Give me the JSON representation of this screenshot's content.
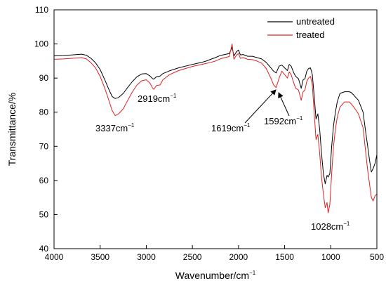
{
  "chart_data": {
    "type": "line",
    "xlabel": "Wavenumber/cm",
    "xlabel_sup": "−1",
    "ylabel": "Transmittance/%",
    "xlim": [
      4000,
      500
    ],
    "ylim": [
      40,
      110
    ],
    "x_ticks": [
      4000,
      3500,
      3000,
      2500,
      2000,
      1500,
      1000,
      500
    ],
    "y_ticks": [
      40,
      50,
      60,
      70,
      80,
      90,
      100,
      110
    ],
    "grid": false,
    "legend_position": "top-right",
    "series": [
      {
        "name": "untreated",
        "color": "#000000",
        "points": [
          [
            4000,
            96.5
          ],
          [
            3900,
            96.6
          ],
          [
            3800,
            96.8
          ],
          [
            3700,
            97.0
          ],
          [
            3650,
            96.7
          ],
          [
            3600,
            95.8
          ],
          [
            3550,
            94.5
          ],
          [
            3500,
            92.5
          ],
          [
            3450,
            89.5
          ],
          [
            3400,
            86.3
          ],
          [
            3370,
            84.6
          ],
          [
            3337,
            84.0
          ],
          [
            3300,
            84.3
          ],
          [
            3250,
            85.5
          ],
          [
            3200,
            87.3
          ],
          [
            3150,
            89.0
          ],
          [
            3100,
            90.4
          ],
          [
            3050,
            91.2
          ],
          [
            3000,
            91.3
          ],
          [
            2960,
            90.6
          ],
          [
            2930,
            89.8
          ],
          [
            2919,
            89.7
          ],
          [
            2890,
            90.4
          ],
          [
            2850,
            90.6
          ],
          [
            2820,
            91.3
          ],
          [
            2750,
            92.1
          ],
          [
            2650,
            93.0
          ],
          [
            2500,
            94.0
          ],
          [
            2400,
            94.6
          ],
          [
            2350,
            95.0
          ],
          [
            2300,
            95.5
          ],
          [
            2250,
            96.0
          ],
          [
            2200,
            96.6
          ],
          [
            2150,
            96.9
          ],
          [
            2100,
            97.2
          ],
          [
            2070,
            99.0
          ],
          [
            2050,
            96.5
          ],
          [
            2020,
            97.8
          ],
          [
            2000,
            98.2
          ],
          [
            1980,
            96.8
          ],
          [
            1950,
            96.9
          ],
          [
            1900,
            96.4
          ],
          [
            1850,
            96.4
          ],
          [
            1800,
            96.0
          ],
          [
            1750,
            95.6
          ],
          [
            1700,
            94.6
          ],
          [
            1650,
            93.0
          ],
          [
            1619,
            92.0
          ],
          [
            1592,
            91.5
          ],
          [
            1560,
            93.5
          ],
          [
            1530,
            93.8
          ],
          [
            1500,
            93.0
          ],
          [
            1470,
            92.2
          ],
          [
            1450,
            94.0
          ],
          [
            1430,
            93.5
          ],
          [
            1400,
            91.5
          ],
          [
            1380,
            90.5
          ],
          [
            1350,
            89.8
          ],
          [
            1320,
            87.0
          ],
          [
            1300,
            89.5
          ],
          [
            1280,
            89.8
          ],
          [
            1260,
            92.0
          ],
          [
            1240,
            92.8
          ],
          [
            1220,
            93.0
          ],
          [
            1200,
            91.0
          ],
          [
            1180,
            85.0
          ],
          [
            1160,
            78.0
          ],
          [
            1140,
            79.5
          ],
          [
            1120,
            75.0
          ],
          [
            1100,
            68.0
          ],
          [
            1080,
            62.0
          ],
          [
            1060,
            59.0
          ],
          [
            1040,
            61.5
          ],
          [
            1028,
            61.0
          ],
          [
            1010,
            62.0
          ],
          [
            990,
            70.0
          ],
          [
            970,
            76.0
          ],
          [
            950,
            80.0
          ],
          [
            930,
            83.0
          ],
          [
            900,
            85.5
          ],
          [
            850,
            86.0
          ],
          [
            800,
            86.0
          ],
          [
            780,
            85.8
          ],
          [
            750,
            85.0
          ],
          [
            700,
            83.5
          ],
          [
            650,
            80.0
          ],
          [
            620,
            74.0
          ],
          [
            600,
            70.0
          ],
          [
            580,
            66.0
          ],
          [
            560,
            62.5
          ],
          [
            540,
            63.5
          ],
          [
            520,
            65.0
          ],
          [
            500,
            67.5
          ]
        ]
      },
      {
        "name": "treated",
        "color": "#e02020",
        "points": [
          [
            4000,
            95.5
          ],
          [
            3900,
            95.6
          ],
          [
            3800,
            95.8
          ],
          [
            3700,
            96.0
          ],
          [
            3650,
            95.6
          ],
          [
            3600,
            94.5
          ],
          [
            3550,
            93.0
          ],
          [
            3500,
            90.5
          ],
          [
            3450,
            87.0
          ],
          [
            3400,
            83.0
          ],
          [
            3370,
            80.5
          ],
          [
            3337,
            79.0
          ],
          [
            3300,
            79.5
          ],
          [
            3250,
            81.0
          ],
          [
            3200,
            83.5
          ],
          [
            3150,
            86.0
          ],
          [
            3100,
            88.0
          ],
          [
            3050,
            89.2
          ],
          [
            3000,
            89.5
          ],
          [
            2960,
            88.5
          ],
          [
            2930,
            87.0
          ],
          [
            2919,
            86.7
          ],
          [
            2890,
            87.8
          ],
          [
            2850,
            88.0
          ],
          [
            2820,
            89.5
          ],
          [
            2750,
            91.0
          ],
          [
            2650,
            92.2
          ],
          [
            2500,
            93.4
          ],
          [
            2400,
            94.0
          ],
          [
            2350,
            94.3
          ],
          [
            2300,
            94.6
          ],
          [
            2250,
            95.0
          ],
          [
            2200,
            95.6
          ],
          [
            2150,
            96.0
          ],
          [
            2100,
            96.3
          ],
          [
            2070,
            100.0
          ],
          [
            2050,
            95.5
          ],
          [
            2020,
            96.8
          ],
          [
            2000,
            97.2
          ],
          [
            1980,
            95.8
          ],
          [
            1950,
            96.0
          ],
          [
            1900,
            95.5
          ],
          [
            1850,
            95.4
          ],
          [
            1800,
            95.0
          ],
          [
            1750,
            94.4
          ],
          [
            1700,
            92.8
          ],
          [
            1650,
            90.0
          ],
          [
            1619,
            88.0
          ],
          [
            1592,
            87.2
          ],
          [
            1560,
            90.0
          ],
          [
            1530,
            92.0
          ],
          [
            1500,
            91.0
          ],
          [
            1470,
            90.0
          ],
          [
            1450,
            91.8
          ],
          [
            1430,
            91.0
          ],
          [
            1400,
            88.5
          ],
          [
            1380,
            87.0
          ],
          [
            1350,
            86.5
          ],
          [
            1320,
            83.5
          ],
          [
            1300,
            86.0
          ],
          [
            1280,
            86.5
          ],
          [
            1260,
            89.0
          ],
          [
            1240,
            90.0
          ],
          [
            1220,
            90.5
          ],
          [
            1200,
            88.0
          ],
          [
            1180,
            80.0
          ],
          [
            1160,
            72.0
          ],
          [
            1140,
            73.5
          ],
          [
            1120,
            68.0
          ],
          [
            1100,
            61.0
          ],
          [
            1080,
            56.0
          ],
          [
            1060,
            52.0
          ],
          [
            1040,
            53.5
          ],
          [
            1028,
            50.5
          ],
          [
            1010,
            53.0
          ],
          [
            990,
            62.0
          ],
          [
            970,
            70.0
          ],
          [
            950,
            75.0
          ],
          [
            930,
            78.5
          ],
          [
            900,
            81.5
          ],
          [
            850,
            83.0
          ],
          [
            800,
            83.0
          ],
          [
            780,
            82.5
          ],
          [
            750,
            81.5
          ],
          [
            700,
            79.5
          ],
          [
            650,
            75.5
          ],
          [
            620,
            68.0
          ],
          [
            600,
            63.0
          ],
          [
            580,
            59.0
          ],
          [
            560,
            55.0
          ],
          [
            540,
            54.0
          ],
          [
            520,
            55.5
          ],
          [
            500,
            56.0
          ]
        ]
      }
    ],
    "annotations": [
      {
        "text": "3337cm",
        "sup": "−1",
        "wavenumber": 3337
      },
      {
        "text": "2919cm",
        "sup": "−1",
        "wavenumber": 2919
      },
      {
        "text": "1619cm",
        "sup": "−1",
        "wavenumber": 1619,
        "arrow": true
      },
      {
        "text": "1592cm",
        "sup": "−1",
        "wavenumber": 1592,
        "arrow": true
      },
      {
        "text": "1028cm",
        "sup": "−1",
        "wavenumber": 1028
      }
    ]
  }
}
